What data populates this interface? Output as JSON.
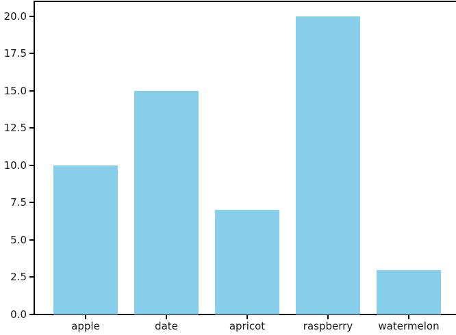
{
  "chart_data": {
    "type": "bar",
    "categories": [
      "apple",
      "date",
      "apricot",
      "raspberry",
      "watermelon"
    ],
    "values": [
      10,
      15,
      7,
      20,
      3
    ],
    "title": "",
    "xlabel": "",
    "ylabel": "",
    "ylim": [
      0,
      21
    ],
    "yticks": [
      0,
      2.5,
      5,
      7.5,
      10,
      12.5,
      15,
      17.5,
      20
    ],
    "ytick_labels": [
      "0.0",
      "2.5",
      "5.0",
      "7.5",
      "10.0",
      "12.5",
      "15.0",
      "17.5",
      "20.0"
    ],
    "grid": false,
    "legend": null,
    "colors": {
      "bar": "#87ceeb",
      "spine": "#000000",
      "text": "#1a1a1a"
    }
  }
}
